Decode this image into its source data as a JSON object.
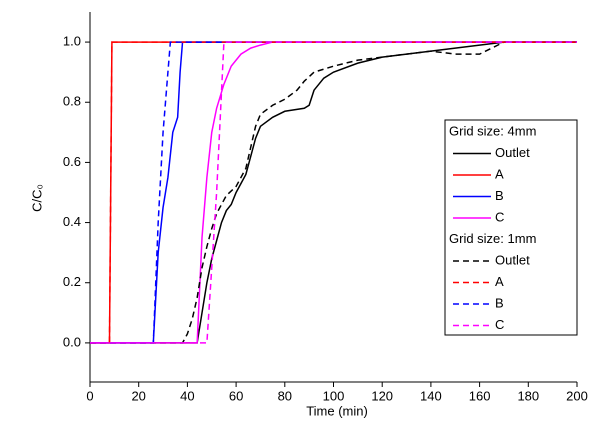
{
  "chart_data": {
    "type": "line",
    "xlabel": "Time (min)",
    "ylabel": "C/C₀",
    "xlim": [
      0,
      200
    ],
    "ylim": [
      -0.13,
      1.1
    ],
    "xticks": [
      0,
      20,
      40,
      60,
      80,
      100,
      120,
      140,
      160,
      180,
      200
    ],
    "yticks": [
      {
        "value": 0,
        "label": "0.0"
      },
      0.2,
      0.4,
      0.6,
      0.8,
      {
        "value": 1,
        "label": "1.0"
      }
    ],
    "legend": "right",
    "legend_groups": [
      "Grid size: 4mm",
      "Grid size: 1mm"
    ],
    "series": [
      {
        "name": "Outlet",
        "color": "#000000",
        "linestyle": "solid",
        "x": [
          0,
          44,
          46,
          48,
          50,
          52,
          54,
          56,
          58,
          60,
          62,
          64,
          66,
          68,
          70,
          75,
          80,
          88,
          90,
          92,
          96,
          100,
          110,
          120,
          130,
          140,
          150,
          160,
          170,
          200
        ],
        "values": [
          0,
          0,
          0.1,
          0.2,
          0.28,
          0.34,
          0.4,
          0.44,
          0.46,
          0.5,
          0.53,
          0.56,
          0.62,
          0.68,
          0.72,
          0.75,
          0.77,
          0.78,
          0.79,
          0.84,
          0.88,
          0.9,
          0.93,
          0.95,
          0.96,
          0.97,
          0.98,
          0.99,
          1,
          1
        ]
      },
      {
        "name": "A",
        "color": "#ff0000",
        "linestyle": "solid",
        "x": [
          0,
          8,
          9,
          200
        ],
        "values": [
          0,
          0,
          1,
          1
        ]
      },
      {
        "name": "B",
        "color": "#0000ff",
        "linestyle": "solid",
        "x": [
          0,
          26,
          28,
          30,
          32,
          34,
          36,
          37,
          38,
          200
        ],
        "values": [
          0,
          0,
          0.3,
          0.45,
          0.55,
          0.7,
          0.75,
          0.9,
          1,
          1
        ]
      },
      {
        "name": "C",
        "color": "#ff00ff",
        "linestyle": "solid",
        "x": [
          0,
          44,
          46,
          48,
          50,
          52,
          55,
          58,
          62,
          66,
          70,
          75,
          200
        ],
        "values": [
          0,
          0,
          0.35,
          0.55,
          0.7,
          0.78,
          0.86,
          0.92,
          0.96,
          0.98,
          0.99,
          1,
          1
        ]
      },
      {
        "name": "Outlet",
        "color": "#000000",
        "linestyle": "dashed",
        "x": [
          0,
          38,
          40,
          42,
          44,
          46,
          48,
          50,
          52,
          54,
          56,
          60,
          62,
          64,
          66,
          68,
          70,
          75,
          80,
          85,
          88,
          92,
          100,
          110,
          120,
          140,
          150,
          160,
          165,
          170,
          200
        ],
        "values": [
          0,
          0,
          0.03,
          0.08,
          0.15,
          0.25,
          0.32,
          0.38,
          0.43,
          0.46,
          0.49,
          0.52,
          0.55,
          0.58,
          0.65,
          0.72,
          0.76,
          0.79,
          0.81,
          0.84,
          0.87,
          0.9,
          0.92,
          0.94,
          0.95,
          0.97,
          0.96,
          0.96,
          0.98,
          1,
          1
        ]
      },
      {
        "name": "A",
        "color": "#ff0000",
        "linestyle": "dashed",
        "x": [
          0,
          8,
          9,
          200
        ],
        "values": [
          0,
          0,
          1,
          1
        ]
      },
      {
        "name": "B",
        "color": "#0000ff",
        "linestyle": "dashed",
        "x": [
          0,
          26,
          28,
          30,
          32,
          33,
          200
        ],
        "values": [
          0,
          0,
          0.4,
          0.7,
          0.9,
          1,
          1
        ]
      },
      {
        "name": "C",
        "color": "#ff00ff",
        "linestyle": "dashed",
        "x": [
          0,
          48,
          52,
          55,
          200
        ],
        "values": [
          0,
          0,
          0.5,
          1,
          1
        ]
      }
    ]
  }
}
